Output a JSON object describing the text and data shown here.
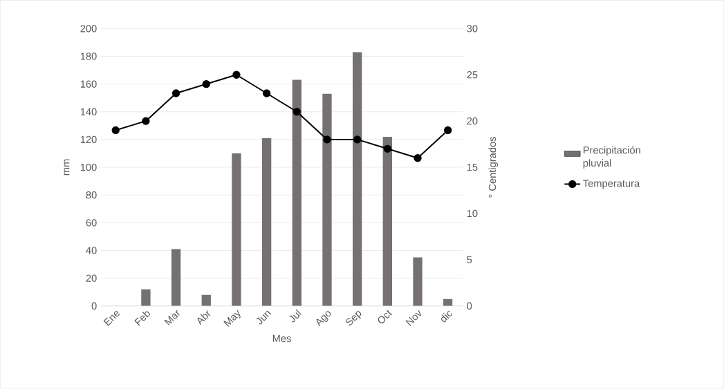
{
  "chart_data": {
    "type": "bar",
    "xlabel": "Mes",
    "ylabel": "mm",
    "y2label": "° Centigrados",
    "categories": [
      "Ene",
      "Feb",
      "Mar",
      "Abr",
      "May",
      "Jun",
      "Jul",
      "Ago",
      "Sep",
      "Oct",
      "Nov",
      "dic"
    ],
    "series": [
      {
        "name": "Precipitación pluvial",
        "color": "#767171",
        "values": [
          0,
          12,
          41,
          8,
          110,
          121,
          163,
          153,
          183,
          122,
          35,
          5
        ]
      },
      {
        "name": "Temperatura",
        "type": "line",
        "axis": "y2",
        "color": "#000000",
        "marker": "circle",
        "line_style": "solid",
        "values": [
          19,
          20,
          23,
          24,
          25,
          23,
          21,
          18,
          18,
          17,
          16,
          19
        ]
      }
    ],
    "ylim": [
      0,
      200
    ],
    "yticks": [
      0,
      20,
      40,
      60,
      80,
      100,
      120,
      140,
      160,
      180,
      200
    ],
    "y2lim": [
      0,
      30
    ],
    "y2ticks": [
      0,
      5,
      10,
      15,
      20,
      25,
      30
    ],
    "grid": "y",
    "legend": "right"
  }
}
